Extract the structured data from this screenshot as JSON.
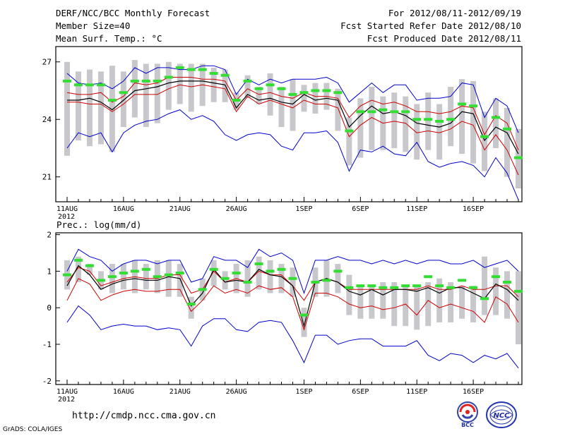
{
  "header": {
    "title": "DERF/NCC/BCC Monthly Forecast",
    "member_size": "Member Size=40",
    "variable": "Mean Surf. Temp.: °C",
    "period": "For 2012/08/11-2012/09/19",
    "start_date": "Fcst Started Refer Date 2012/08/10",
    "produced_date": "Fcst Produced Date 2012/08/11"
  },
  "footer": {
    "url": "http://cmdp.ncc.cma.gov.cn",
    "credit": "GrADS: COLA/IGES",
    "bcc_logo_text": "BCC",
    "ncc_logo_text": "NCC"
  },
  "colors": {
    "ensemble_bar": "#c8c8cc",
    "mean_marker": "#33dd33",
    "median_line": "#000000",
    "quartile_line": "#cc0000",
    "envelope_line": "#0000cc"
  },
  "chart_data": [
    {
      "type": "line",
      "title": "Mean Surf. Temp.: °C",
      "x_labels": [
        "11AUG",
        "16AUG",
        "21AUG",
        "26AUG",
        "1SEP",
        "6SEP",
        "11SEP",
        "16SEP"
      ],
      "x_label_positions": [
        1,
        6,
        11,
        16,
        22,
        27,
        32,
        37
      ],
      "x_sub_label": "2012",
      "y_ticks": [
        21,
        24,
        27
      ],
      "ylim": [
        19.7,
        27.8
      ],
      "bars": [
        [
          22.1,
          27.0
        ],
        [
          22.9,
          26.5
        ],
        [
          22.6,
          26.6
        ],
        [
          22.7,
          26.5
        ],
        [
          22.3,
          26.8
        ],
        [
          23.6,
          26.5
        ],
        [
          24.1,
          27.1
        ],
        [
          23.6,
          26.9
        ],
        [
          23.8,
          26.9
        ],
        [
          24.5,
          27.0
        ],
        [
          24.8,
          26.9
        ],
        [
          24.4,
          26.9
        ],
        [
          24.7,
          26.9
        ],
        [
          24.9,
          26.7
        ],
        [
          24.9,
          26.6
        ],
        [
          24.5,
          25.4
        ],
        [
          25.1,
          26.3
        ],
        [
          24.8,
          25.7
        ],
        [
          24.2,
          26.4
        ],
        [
          23.6,
          25.7
        ],
        [
          23.4,
          26.1
        ],
        [
          24.4,
          25.8
        ],
        [
          24.3,
          25.9
        ],
        [
          24.5,
          25.9
        ],
        [
          23.4,
          25.6
        ],
        [
          21.6,
          24.1
        ],
        [
          22.0,
          25.1
        ],
        [
          22.4,
          25.7
        ],
        [
          22.4,
          25.2
        ],
        [
          22.5,
          25.4
        ],
        [
          22.3,
          25.2
        ],
        [
          21.9,
          24.8
        ],
        [
          22.4,
          25.4
        ],
        [
          21.9,
          24.8
        ],
        [
          22.6,
          25.7
        ],
        [
          22.2,
          26.1
        ],
        [
          21.7,
          26.0
        ],
        [
          21.3,
          24.4
        ],
        [
          22.5,
          25.1
        ],
        [
          21.0,
          24.6
        ],
        [
          20.4,
          23.5
        ]
      ],
      "series": [
        {
          "name": "ensemble mean",
          "values": [
            26.0,
            25.8,
            25.8,
            25.8,
            25.0,
            25.4,
            26.0,
            26.0,
            26.0,
            26.2,
            26.7,
            26.6,
            26.6,
            26.4,
            26.3,
            25.0,
            26.0,
            25.6,
            25.8,
            25.6,
            25.3,
            25.4,
            25.5,
            25.5,
            25.4,
            23.4,
            24.4,
            24.4,
            24.5,
            24.4,
            24.4,
            24.0,
            24.0,
            23.9,
            24.0,
            24.8,
            24.7,
            23.1,
            24.1,
            23.5,
            22.0
          ]
        },
        {
          "name": "max",
          "values": [
            26.4,
            25.9,
            25.8,
            25.9,
            25.6,
            26.0,
            26.7,
            26.4,
            26.7,
            26.7,
            26.6,
            26.6,
            26.8,
            26.8,
            26.6,
            25.3,
            26.1,
            25.8,
            26.1,
            25.9,
            26.1,
            26.1,
            26.1,
            26.2,
            25.9,
            24.9,
            25.4,
            25.9,
            25.4,
            25.8,
            25.8,
            25.0,
            25.1,
            25.1,
            25.2,
            25.9,
            25.8,
            24.1,
            25.1,
            24.7,
            23.3
          ]
        },
        {
          "name": "upper quartile",
          "values": [
            25.4,
            25.3,
            25.3,
            25.4,
            24.9,
            25.2,
            25.9,
            25.8,
            25.9,
            26.2,
            26.2,
            26.2,
            26.1,
            26.1,
            26.0,
            25.0,
            25.6,
            25.3,
            25.4,
            25.2,
            25.1,
            25.4,
            25.2,
            25.2,
            25.1,
            24.1,
            24.7,
            25.0,
            24.8,
            24.9,
            24.7,
            24.4,
            24.4,
            24.3,
            24.4,
            24.7,
            24.6,
            23.2,
            24.2,
            23.8,
            22.4
          ]
        },
        {
          "name": "median",
          "values": [
            25.0,
            25.0,
            25.1,
            24.9,
            24.5,
            25.0,
            25.5,
            25.6,
            25.7,
            25.9,
            26.0,
            26.0,
            26.0,
            25.9,
            25.8,
            24.6,
            25.3,
            25.0,
            25.1,
            24.9,
            24.8,
            25.3,
            25.0,
            25.1,
            25.0,
            23.6,
            24.2,
            24.7,
            24.3,
            24.4,
            24.2,
            23.8,
            23.7,
            23.6,
            23.8,
            24.4,
            24.3,
            22.9,
            23.6,
            23.3,
            22.2
          ]
        },
        {
          "name": "lower quartile",
          "values": [
            24.9,
            24.9,
            24.8,
            24.8,
            24.4,
            24.8,
            25.3,
            25.3,
            25.3,
            25.6,
            25.8,
            25.7,
            25.8,
            25.7,
            25.6,
            24.4,
            25.2,
            24.8,
            25.0,
            24.8,
            24.6,
            25.0,
            24.8,
            24.8,
            24.6,
            23.1,
            23.7,
            24.1,
            23.8,
            23.9,
            23.8,
            23.3,
            23.4,
            23.3,
            23.5,
            23.9,
            23.7,
            22.4,
            23.2,
            22.4,
            21.1
          ]
        },
        {
          "name": "min",
          "values": [
            22.5,
            23.3,
            23.1,
            23.3,
            22.3,
            23.3,
            23.7,
            23.9,
            24.0,
            24.3,
            24.5,
            24.0,
            24.2,
            23.9,
            23.2,
            22.9,
            23.2,
            23.3,
            23.2,
            22.6,
            22.4,
            23.3,
            23.3,
            23.4,
            22.8,
            21.3,
            22.4,
            22.3,
            22.6,
            22.2,
            22.1,
            22.8,
            21.8,
            21.5,
            21.7,
            21.8,
            21.6,
            21.0,
            22.0,
            21.2,
            19.8
          ]
        }
      ]
    },
    {
      "type": "line",
      "title": "Prec.: log(mm/d)",
      "x_labels": [
        "11AUG",
        "16AUG",
        "21AUG",
        "26AUG",
        "1SEP",
        "6SEP",
        "11SEP",
        "16SEP"
      ],
      "x_label_positions": [
        1,
        6,
        11,
        16,
        22,
        27,
        32,
        37
      ],
      "x_sub_label": "2012",
      "y_ticks": [
        -2,
        -1,
        0,
        1,
        2
      ],
      "ylim": [
        -2.1,
        2.05
      ],
      "bars": [
        [
          0.5,
          1.3
        ],
        [
          0.7,
          1.4
        ],
        [
          0.9,
          1.2
        ],
        [
          0.5,
          1.0
        ],
        [
          0.4,
          1.2
        ],
        [
          0.5,
          1.2
        ],
        [
          0.4,
          1.3
        ],
        [
          0.5,
          1.2
        ],
        [
          0.4,
          1.3
        ],
        [
          0.3,
          1.3
        ],
        [
          0.3,
          1.2
        ],
        [
          -0.3,
          0.3
        ],
        [
          0.2,
          0.8
        ],
        [
          0.6,
          1.3
        ],
        [
          0.5,
          1.0
        ],
        [
          0.4,
          1.2
        ],
        [
          0.3,
          1.3
        ],
        [
          0.5,
          1.4
        ],
        [
          0.4,
          1.3
        ],
        [
          0.4,
          1.2
        ],
        [
          0.3,
          1.1
        ],
        [
          -0.8,
          0.0
        ],
        [
          0.3,
          1.1
        ],
        [
          0.3,
          1.3
        ],
        [
          0.4,
          1.2
        ],
        [
          -0.2,
          0.9
        ],
        [
          -0.3,
          0.6
        ],
        [
          -0.3,
          0.6
        ],
        [
          -0.3,
          0.7
        ],
        [
          -0.5,
          0.7
        ],
        [
          -0.5,
          0.6
        ],
        [
          -0.6,
          0.6
        ],
        [
          -0.5,
          0.7
        ],
        [
          -0.4,
          0.8
        ],
        [
          -0.4,
          0.7
        ],
        [
          -0.3,
          0.6
        ],
        [
          -0.4,
          0.6
        ],
        [
          -0.2,
          1.4
        ],
        [
          -0.2,
          1.1
        ],
        [
          -0.3,
          1.0
        ],
        [
          -1.0,
          1.0
        ]
      ],
      "series": [
        {
          "name": "ensemble mean",
          "values": [
            0.9,
            1.3,
            1.15,
            0.75,
            0.85,
            0.95,
            1.0,
            1.05,
            0.85,
            0.9,
            0.95,
            0.1,
            0.5,
            1.05,
            0.8,
            0.95,
            0.7,
            1.2,
            1.0,
            1.05,
            0.8,
            -0.2,
            0.7,
            0.75,
            1.0,
            0.55,
            0.6,
            0.6,
            0.55,
            0.55,
            0.6,
            0.6,
            0.85,
            0.6,
            0.55,
            0.75,
            0.55,
            0.25,
            0.85,
            0.7,
            0.45
          ]
        },
        {
          "name": "max",
          "values": [
            1.0,
            1.6,
            1.4,
            1.3,
            1.0,
            1.2,
            1.3,
            1.3,
            1.2,
            1.3,
            1.3,
            0.7,
            0.8,
            1.4,
            1.3,
            1.3,
            1.1,
            1.6,
            1.4,
            1.5,
            1.3,
            0.4,
            1.3,
            1.3,
            1.4,
            1.3,
            1.3,
            1.2,
            1.3,
            1.2,
            1.3,
            1.2,
            1.3,
            1.3,
            1.2,
            1.2,
            1.3,
            1.1,
            1.2,
            1.3,
            1.0
          ]
        },
        {
          "name": "upper quartile",
          "values": [
            0.7,
            1.1,
            1.0,
            0.6,
            0.7,
            0.8,
            0.85,
            0.8,
            0.8,
            0.9,
            0.9,
            0.4,
            0.5,
            1.0,
            0.7,
            0.8,
            0.7,
            1.0,
            0.9,
            0.9,
            0.6,
            0.2,
            0.7,
            0.8,
            0.7,
            0.5,
            0.5,
            0.5,
            0.5,
            0.5,
            0.5,
            0.5,
            0.6,
            0.5,
            0.5,
            0.6,
            0.5,
            0.5,
            0.6,
            0.6,
            0.3
          ]
        },
        {
          "name": "median",
          "values": [
            0.6,
            1.15,
            0.9,
            0.5,
            0.65,
            0.75,
            0.8,
            0.75,
            0.75,
            0.85,
            0.8,
            0.05,
            0.4,
            1.05,
            0.7,
            0.75,
            0.7,
            1.05,
            0.9,
            0.85,
            0.6,
            -0.5,
            0.7,
            0.8,
            0.7,
            0.45,
            0.35,
            0.5,
            0.35,
            0.5,
            0.5,
            0.45,
            0.55,
            0.4,
            0.55,
            0.55,
            0.4,
            0.25,
            0.65,
            0.5,
            0.2
          ]
        },
        {
          "name": "lower quartile",
          "values": [
            0.2,
            0.8,
            0.65,
            0.2,
            0.35,
            0.45,
            0.5,
            0.45,
            0.45,
            0.5,
            0.5,
            -0.1,
            0.2,
            0.6,
            0.4,
            0.5,
            0.4,
            0.6,
            0.5,
            0.55,
            0.3,
            -0.6,
            0.4,
            0.4,
            0.3,
            0.1,
            0.0,
            0.05,
            -0.05,
            0.0,
            0.1,
            -0.2,
            0.2,
            0.0,
            0.1,
            0.0,
            -0.1,
            -0.4,
            0.3,
            0.1,
            -0.4
          ]
        },
        {
          "name": "min",
          "values": [
            -0.4,
            0.05,
            -0.2,
            -0.6,
            -0.5,
            -0.45,
            -0.5,
            -0.5,
            -0.6,
            -0.55,
            -0.6,
            -1.05,
            -0.5,
            -0.3,
            -0.3,
            -0.6,
            -0.65,
            -0.4,
            -0.35,
            -0.4,
            -0.9,
            -1.5,
            -0.75,
            -0.75,
            -1.0,
            -0.9,
            -0.85,
            -0.85,
            -1.05,
            -1.05,
            -1.05,
            -0.9,
            -1.3,
            -1.45,
            -1.25,
            -1.3,
            -1.5,
            -1.3,
            -1.4,
            -1.25,
            -1.65
          ]
        }
      ]
    }
  ],
  "prec_label": "Prec.: log(mm/d)"
}
